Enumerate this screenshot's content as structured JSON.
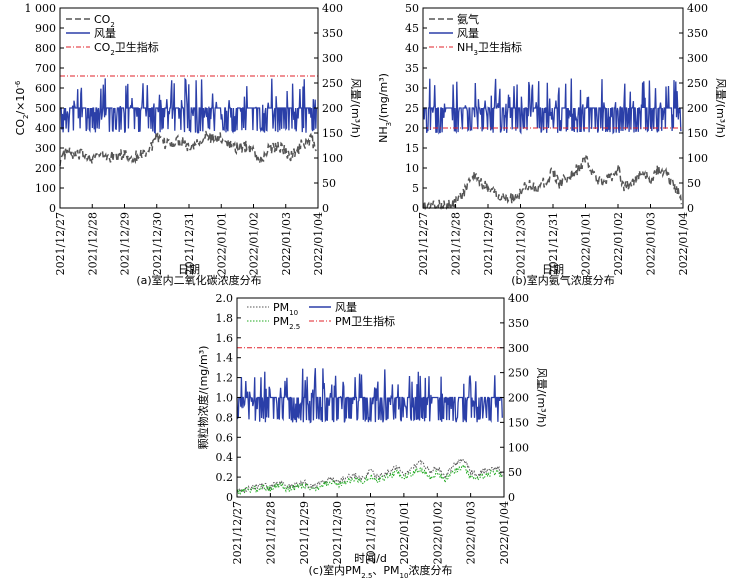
{
  "colors": {
    "co2": "#555555",
    "nh3": "#555555",
    "pm10": "#555555",
    "pm25": "#22aa22",
    "wind": "#2b3fa8",
    "limit": "#e0202a"
  },
  "chart_data": [
    {
      "id": "a",
      "type": "line",
      "caption": "(a)室内二氧化碳浓度分布",
      "xlabel": "日期",
      "ylabel_left": "CO2/×10^-6",
      "ylabel_right": "风量/(m³/h)",
      "x_ticks": [
        "2021/12/27",
        "2021/12/28",
        "2021/12/29",
        "2021/12/30",
        "2021/12/31",
        "2022/01/01",
        "2022/01/02",
        "2022/01/03",
        "2022/01/04"
      ],
      "ylim_left": [
        0,
        1000
      ],
      "y_ticks_left": [
        "0",
        "100",
        "200",
        "300",
        "400",
        "500",
        "600",
        "700",
        "800",
        "900",
        "1 000"
      ],
      "ylim_right": [
        0,
        400
      ],
      "y_ticks_right": [
        "0",
        "50",
        "100",
        "150",
        "200",
        "250",
        "300",
        "350",
        "400"
      ],
      "legend": [
        "CO2",
        "风量",
        "CO2卫生指标"
      ],
      "limit_value": 660,
      "series": [
        {
          "name": "CO2",
          "axis": "left",
          "style": "dashed",
          "x": [
            0,
            0.2,
            0.5,
            0.8,
            1.0,
            1.2,
            1.5,
            1.8,
            2.0,
            2.2,
            2.5,
            2.8,
            3.0,
            3.2,
            3.5,
            3.8,
            4.0,
            4.2,
            4.5,
            4.8,
            5.0,
            5.2,
            5.5,
            5.8,
            6.0,
            6.2,
            6.5,
            6.8,
            7.0,
            7.2,
            7.5,
            7.8,
            7.95
          ],
          "values": [
            240,
            280,
            260,
            270,
            250,
            265,
            255,
            260,
            270,
            250,
            265,
            300,
            350,
            320,
            330,
            340,
            300,
            330,
            360,
            340,
            350,
            330,
            300,
            310,
            290,
            230,
            300,
            310,
            280,
            260,
            320,
            340,
            300
          ]
        },
        {
          "name": "风量",
          "axis": "right",
          "style": "solid",
          "x": [
            0,
            0.2,
            0.5,
            0.8,
            1.0,
            1.2,
            1.5,
            1.8,
            2.0,
            2.2,
            2.5,
            2.8,
            3.0,
            3.2,
            3.5,
            3.8,
            4.0,
            4.2,
            4.5,
            4.8,
            5.0,
            5.2,
            5.5,
            5.8,
            6.0,
            6.2,
            6.5,
            6.8,
            7.0,
            7.2,
            7.5,
            7.8,
            7.95
          ],
          "values": [
            200,
            160,
            210,
            180,
            200,
            165,
            205,
            190,
            210,
            170,
            200,
            185,
            210,
            175,
            200,
            190,
            215,
            170,
            200,
            185,
            205,
            170,
            195,
            200,
            230,
            160,
            205,
            190,
            200,
            180,
            210,
            195,
            140
          ]
        }
      ]
    },
    {
      "id": "b",
      "type": "line",
      "caption": "(b)室内氨气浓度分布",
      "xlabel": "日期",
      "ylabel_left": "NH3/(mg/m³)",
      "ylabel_right": "风量/(m³/h)",
      "x_ticks": [
        "2021/12/27",
        "2021/12/28",
        "2021/12/29",
        "2021/12/30",
        "2021/12/31",
        "2022/01/01",
        "2022/01/02",
        "2022/01/03",
        "2022/01/04"
      ],
      "ylim_left": [
        0,
        50
      ],
      "y_ticks_left": [
        "0",
        "5",
        "10",
        "15",
        "20",
        "25",
        "30",
        "35",
        "40",
        "45",
        "50"
      ],
      "ylim_right": [
        0,
        400
      ],
      "y_ticks_right": [
        "0",
        "50",
        "100",
        "150",
        "200",
        "250",
        "300",
        "350",
        "400"
      ],
      "legend": [
        "氨气",
        "风量",
        "NH3卫生指标"
      ],
      "limit_value": 20,
      "series": [
        {
          "name": "氨气",
          "axis": "left",
          "style": "dashed",
          "x": [
            0,
            0.2,
            0.5,
            0.8,
            1.0,
            1.2,
            1.5,
            1.8,
            2.0,
            2.2,
            2.5,
            2.8,
            3.0,
            3.2,
            3.5,
            3.8,
            4.0,
            4.2,
            4.5,
            4.8,
            5.0,
            5.2,
            5.5,
            5.8,
            6.0,
            6.2,
            6.5,
            6.8,
            7.0,
            7.2,
            7.5,
            7.8,
            7.95
          ],
          "values": [
            0.5,
            0.5,
            0.6,
            0.8,
            1.5,
            3,
            8,
            6,
            5,
            4,
            3,
            2.5,
            4,
            6,
            5,
            7,
            9,
            6,
            8,
            10,
            12,
            9,
            6,
            8,
            10,
            5,
            7,
            9,
            6,
            10,
            8,
            5,
            2
          ]
        },
        {
          "name": "风量",
          "axis": "right",
          "style": "solid",
          "x": [
            0,
            0.2,
            0.5,
            0.8,
            1.0,
            1.2,
            1.5,
            1.8,
            2.0,
            2.2,
            2.5,
            2.8,
            3.0,
            3.2,
            3.5,
            3.8,
            4.0,
            4.2,
            4.5,
            4.8,
            5.0,
            5.2,
            5.5,
            5.8,
            6.0,
            6.2,
            6.5,
            6.8,
            7.0,
            7.2,
            7.5,
            7.8,
            7.95
          ],
          "values": [
            200,
            160,
            210,
            180,
            200,
            165,
            205,
            190,
            210,
            170,
            200,
            185,
            210,
            175,
            200,
            190,
            215,
            170,
            200,
            185,
            205,
            170,
            195,
            200,
            230,
            160,
            205,
            190,
            200,
            180,
            210,
            195,
            140
          ]
        }
      ]
    },
    {
      "id": "c",
      "type": "line",
      "caption": "(c)室内PM2.5、PM10浓度分布",
      "xlabel": "时间/d",
      "ylabel_left": "颗粒物浓度/(mg/m³)",
      "ylabel_right": "风量/(m³/h)",
      "x_ticks": [
        "2021/12/27",
        "2021/12/28",
        "2021/12/29",
        "2021/12/30",
        "2021/12/31",
        "2022/01/01",
        "2022/01/02",
        "2022/01/03",
        "2022/01/04"
      ],
      "ylim_left": [
        0,
        2.0
      ],
      "y_ticks_left": [
        "0",
        "0.2",
        "0.4",
        "0.6",
        "0.8",
        "1.0",
        "1.2",
        "1.4",
        "1.6",
        "1.8",
        "2.0"
      ],
      "ylim_right": [
        0,
        400
      ],
      "y_ticks_right": [
        "0",
        "50",
        "100",
        "150",
        "200",
        "250",
        "300",
        "350",
        "400"
      ],
      "legend": [
        "PM10",
        "PM2.5",
        "风量",
        "PM卫生指标"
      ],
      "limit_value": 1.5,
      "series": [
        {
          "name": "PM10",
          "axis": "left",
          "style": "dotted",
          "x": [
            0,
            0.2,
            0.5,
            0.8,
            1.0,
            1.2,
            1.5,
            1.8,
            2.0,
            2.2,
            2.5,
            2.8,
            3.0,
            3.2,
            3.5,
            3.8,
            4.0,
            4.2,
            4.5,
            4.8,
            5.0,
            5.2,
            5.5,
            5.8,
            6.0,
            6.2,
            6.5,
            6.8,
            7.0,
            7.2,
            7.5,
            7.8,
            7.95
          ],
          "values": [
            0.08,
            0.07,
            0.1,
            0.12,
            0.09,
            0.15,
            0.1,
            0.12,
            0.15,
            0.1,
            0.13,
            0.2,
            0.15,
            0.18,
            0.22,
            0.2,
            0.26,
            0.2,
            0.25,
            0.3,
            0.22,
            0.28,
            0.35,
            0.25,
            0.3,
            0.2,
            0.32,
            0.38,
            0.25,
            0.22,
            0.28,
            0.3,
            0.24
          ]
        },
        {
          "name": "PM2.5",
          "axis": "left",
          "style": "dotted",
          "x": [
            0,
            0.2,
            0.5,
            0.8,
            1.0,
            1.2,
            1.5,
            1.8,
            2.0,
            2.2,
            2.5,
            2.8,
            3.0,
            3.2,
            3.5,
            3.8,
            4.0,
            4.2,
            4.5,
            4.8,
            5.0,
            5.2,
            5.5,
            5.8,
            6.0,
            6.2,
            6.5,
            6.8,
            7.0,
            7.2,
            7.5,
            7.8,
            7.95
          ],
          "values": [
            0.06,
            0.06,
            0.08,
            0.1,
            0.07,
            0.12,
            0.08,
            0.1,
            0.12,
            0.08,
            0.1,
            0.16,
            0.12,
            0.15,
            0.18,
            0.16,
            0.21,
            0.16,
            0.2,
            0.25,
            0.18,
            0.23,
            0.28,
            0.2,
            0.24,
            0.16,
            0.26,
            0.3,
            0.2,
            0.18,
            0.23,
            0.25,
            0.2
          ]
        },
        {
          "name": "风量",
          "axis": "right",
          "style": "solid",
          "x": [
            0,
            0.2,
            0.5,
            0.8,
            1.0,
            1.2,
            1.5,
            1.8,
            2.0,
            2.2,
            2.5,
            2.8,
            3.0,
            3.2,
            3.5,
            3.8,
            4.0,
            4.2,
            4.5,
            4.8,
            5.0,
            5.2,
            5.5,
            5.8,
            6.0,
            6.2,
            6.5,
            6.8,
            7.0,
            7.2,
            7.5,
            7.8,
            7.95
          ],
          "values": [
            200,
            160,
            210,
            180,
            200,
            165,
            205,
            190,
            210,
            170,
            200,
            185,
            210,
            175,
            200,
            190,
            215,
            170,
            200,
            185,
            205,
            170,
            195,
            200,
            230,
            160,
            205,
            190,
            200,
            180,
            210,
            195,
            140
          ]
        }
      ]
    }
  ]
}
